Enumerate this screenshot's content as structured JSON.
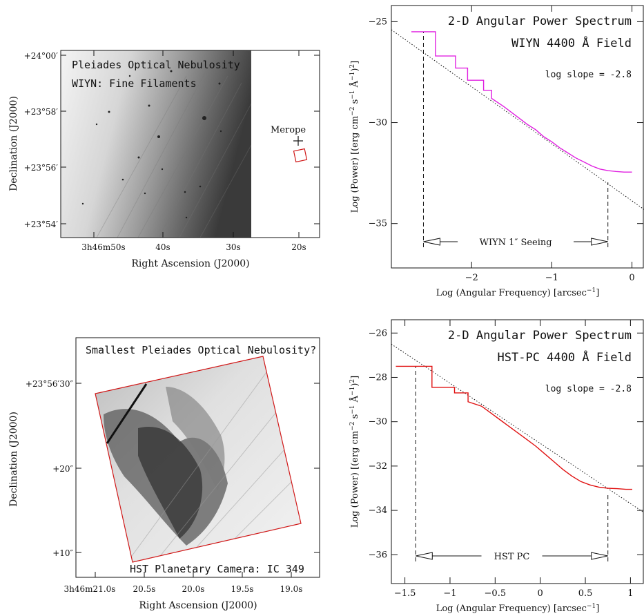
{
  "panel_tl": {
    "title_line1": "Pleiades Optical Nebulosity",
    "title_line2": "WIYN: Fine Filaments",
    "ylabel": "Declination (J2000)",
    "xlabel": "Right Ascension (J2000)",
    "yticks": [
      "+24°00′",
      "+23°58′",
      "+23°56′",
      "+23°54′"
    ],
    "xticks": [
      "3h46m50s",
      "40s",
      "30s",
      "20s"
    ],
    "star_label": "Merope"
  },
  "panel_bl": {
    "title": "Smallest Pleiades Optical Nebulosity?",
    "caption": "HST Planetary Camera: IC 349",
    "ylabel": "Declination (J2000)",
    "xlabel": "Right Ascension (J2000)",
    "yticks": [
      "+23°56′30″",
      "+20″",
      "+10″"
    ],
    "xticks": [
      "3h46m21.0s",
      "20.5s",
      "20.0s",
      "19.5s",
      "19.0s"
    ]
  },
  "chart_data": [
    {
      "type": "line",
      "title": "2-D Angular Power Spectrum",
      "subtitle": "WIYN 4400 Å Field",
      "annotation": "log slope = -2.8",
      "seeing_label": "WIYN 1″ Seeing",
      "xlabel": "Log (Angular Frequency) [arcsec-1]",
      "ylabel": "Log (Power) [(erg cm-2 s-1 Å-1)2]",
      "xlim": [
        -3.0,
        0.15
      ],
      "ylim": [
        -37.2,
        -24.2
      ],
      "xticks": [
        -2,
        -1,
        0
      ],
      "xtick_labels": [
        "−2",
        "−1",
        "0"
      ],
      "yticks": [
        -25,
        -30,
        -35
      ],
      "ytick_labels": [
        "−25",
        "−30",
        "−35"
      ],
      "seeing_lines_x": [
        -2.6,
        -0.3
      ],
      "fit_line": {
        "slope": -2.8,
        "x": [
          -3.0,
          0.15
        ],
        "y": [
          -25.4,
          -34.3
        ]
      },
      "series": [
        {
          "color": "#e020e0",
          "x": [
            -2.75,
            -2.45,
            -2.45,
            -2.2,
            -2.2,
            -2.05,
            -2.05,
            -1.85,
            -1.85,
            -1.75,
            -1.75,
            -1.6,
            -1.5,
            -1.4,
            -1.3,
            -1.2,
            -1.1,
            -1.0,
            -0.9,
            -0.8,
            -0.7,
            -0.6,
            -0.5,
            -0.4,
            -0.3,
            -0.2,
            -0.1,
            0.0
          ],
          "y": [
            -25.5,
            -25.5,
            -26.7,
            -26.7,
            -27.3,
            -27.3,
            -27.9,
            -27.9,
            -28.4,
            -28.4,
            -28.8,
            -29.2,
            -29.5,
            -29.8,
            -30.1,
            -30.35,
            -30.7,
            -30.95,
            -31.25,
            -31.5,
            -31.75,
            -31.95,
            -32.15,
            -32.3,
            -32.38,
            -32.42,
            -32.45,
            -32.45
          ]
        }
      ]
    },
    {
      "type": "line",
      "title": "2-D Angular Power Spectrum",
      "subtitle": "HST-PC 4400 Å Field",
      "annotation": "log slope = -2.8",
      "seeing_label": "HST PC",
      "xlabel": "Log (Angular Frequency) [arcsec-1]",
      "ylabel": "Log (Power) [(erg cm-2 s-1 Å-1)2]",
      "xlim": [
        -1.65,
        1.15
      ],
      "ylim": [
        -37.3,
        -25.4
      ],
      "xticks": [
        -1.5,
        -1.0,
        -0.5,
        0.0,
        0.5,
        1.0
      ],
      "xtick_labels": [
        "−1.5",
        "−1",
        "−0.5",
        "0",
        "0.5",
        "1"
      ],
      "yticks": [
        -26,
        -28,
        -30,
        -32,
        -34,
        -36
      ],
      "ytick_labels": [
        "−26",
        "−28",
        "−30",
        "−32",
        "−34",
        "−36"
      ],
      "seeing_lines_x": [
        -1.38,
        0.75
      ],
      "fit_line": {
        "slope": -2.8,
        "x": [
          -1.65,
          1.15
        ],
        "y": [
          -26.5,
          -34.1
        ]
      },
      "series": [
        {
          "color": "#e01010",
          "x": [
            -1.6,
            -1.2,
            -1.2,
            -0.95,
            -0.95,
            -0.8,
            -0.8,
            -0.65,
            -0.55,
            -0.45,
            -0.35,
            -0.25,
            -0.15,
            -0.05,
            0.05,
            0.15,
            0.25,
            0.35,
            0.45,
            0.55,
            0.65,
            0.75,
            0.85,
            0.95,
            1.02
          ],
          "y": [
            -27.5,
            -27.5,
            -28.45,
            -28.45,
            -28.7,
            -28.7,
            -29.1,
            -29.3,
            -29.6,
            -29.9,
            -30.2,
            -30.5,
            -30.8,
            -31.1,
            -31.45,
            -31.8,
            -32.15,
            -32.45,
            -32.7,
            -32.85,
            -32.95,
            -33.0,
            -33.02,
            -33.05,
            -33.05
          ]
        }
      ]
    }
  ]
}
